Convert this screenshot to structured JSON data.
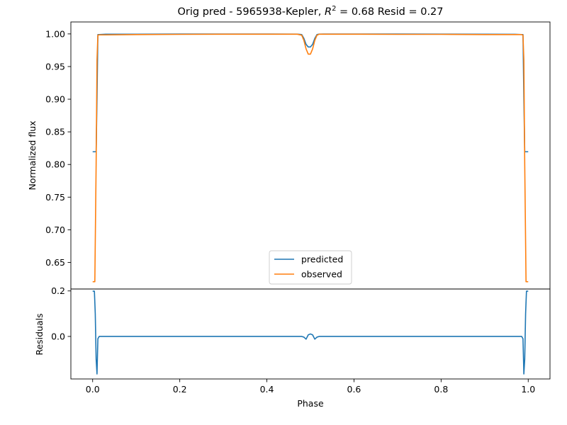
{
  "chart_data": [
    {
      "type": "line",
      "title": "Orig pred - 5965938-Kepler, R² = 0.68 Resid = 0.27",
      "title_parts": {
        "prefix": "Orig pred - 5965938-Kepler, ",
        "r_symbol": "R",
        "r_sup": "2",
        "suffix": " = 0.68 Resid = 0.27"
      },
      "xlabel": "",
      "ylabel": "Normalized flux",
      "xlim": [
        -0.05,
        1.05
      ],
      "ylim": [
        0.6093,
        1.0183
      ],
      "yticks": [
        0.65,
        0.7,
        0.75,
        0.8,
        0.85,
        0.9,
        0.95,
        1.0
      ],
      "ytick_labels": [
        "0.65",
        "0.70",
        "0.75",
        "0.80",
        "0.85",
        "0.90",
        "0.95",
        "1.00"
      ],
      "legend_position": "bottom-center",
      "series": [
        {
          "name": "predicted",
          "color": "#1f77b4",
          "x": [
            0.0,
            0.005,
            0.008,
            0.01,
            0.012,
            0.015,
            0.03,
            0.1,
            0.2,
            0.3,
            0.4,
            0.47,
            0.48,
            0.485,
            0.49,
            0.495,
            0.5,
            0.505,
            0.51,
            0.515,
            0.52,
            0.53,
            0.6,
            0.7,
            0.8,
            0.9,
            0.97,
            0.985,
            0.988,
            0.99,
            0.992,
            0.995,
            1.0
          ],
          "y": [
            0.8195,
            0.8195,
            0.8195,
            0.9,
            0.999,
            0.999,
            0.9995,
            0.9995,
            0.9998,
            0.9998,
            0.9998,
            0.9997,
            0.999,
            0.993,
            0.984,
            0.98,
            0.98,
            0.984,
            0.993,
            0.999,
            0.9997,
            0.9998,
            0.9998,
            0.9998,
            0.9997,
            0.9995,
            0.9994,
            0.999,
            0.999,
            0.9,
            0.8195,
            0.8195,
            0.8195
          ]
        },
        {
          "name": "observed",
          "color": "#ff7f0e",
          "x": [
            0.0,
            0.005,
            0.008,
            0.01,
            0.012,
            0.015,
            0.03,
            0.1,
            0.2,
            0.3,
            0.4,
            0.47,
            0.48,
            0.485,
            0.49,
            0.495,
            0.5,
            0.505,
            0.51,
            0.515,
            0.52,
            0.53,
            0.6,
            0.7,
            0.8,
            0.9,
            0.97,
            0.985,
            0.988,
            0.99,
            0.992,
            0.995,
            1.0
          ],
          "y": [
            0.6205,
            0.6205,
            0.8,
            0.96,
            0.998,
            0.9985,
            0.9985,
            0.999,
            0.9993,
            0.9995,
            0.9995,
            0.9995,
            0.998,
            0.99,
            0.977,
            0.969,
            0.969,
            0.977,
            0.99,
            0.998,
            0.9995,
            0.9995,
            0.9995,
            0.9993,
            0.9993,
            0.999,
            0.999,
            0.999,
            0.998,
            0.96,
            0.8,
            0.6205,
            0.6205
          ]
        }
      ]
    },
    {
      "type": "line",
      "xlabel": "Phase",
      "ylabel": "Residuals",
      "xlim": [
        -0.05,
        1.05
      ],
      "ylim": [
        -0.1869,
        0.2085
      ],
      "xticks": [
        0.0,
        0.2,
        0.4,
        0.6,
        0.8,
        1.0
      ],
      "xtick_labels": [
        "0.0",
        "0.2",
        "0.4",
        "0.6",
        "0.8",
        "1.0"
      ],
      "yticks": [
        0.0,
        0.2
      ],
      "ytick_labels": [
        "0.0",
        "0.2"
      ],
      "series": [
        {
          "color": "#1f77b4",
          "x": [
            0.0,
            0.004,
            0.006,
            0.008,
            0.01,
            0.012,
            0.015,
            0.03,
            0.2,
            0.4,
            0.48,
            0.485,
            0.49,
            0.495,
            0.5,
            0.505,
            0.51,
            0.515,
            0.52,
            0.6,
            0.8,
            0.97,
            0.985,
            0.988,
            0.99,
            0.992,
            0.994,
            0.996,
            1.0
          ],
          "y": [
            0.199,
            0.199,
            0.1,
            -0.1,
            -0.165,
            -0.01,
            0.0,
            0.0,
            0.0,
            0.0,
            0.0,
            -0.003,
            -0.012,
            0.007,
            0.011,
            0.007,
            -0.012,
            -0.003,
            0.0,
            0.0,
            0.0,
            0.0,
            0.0,
            -0.01,
            -0.165,
            -0.1,
            0.1,
            0.199,
            0.199
          ]
        }
      ]
    }
  ]
}
